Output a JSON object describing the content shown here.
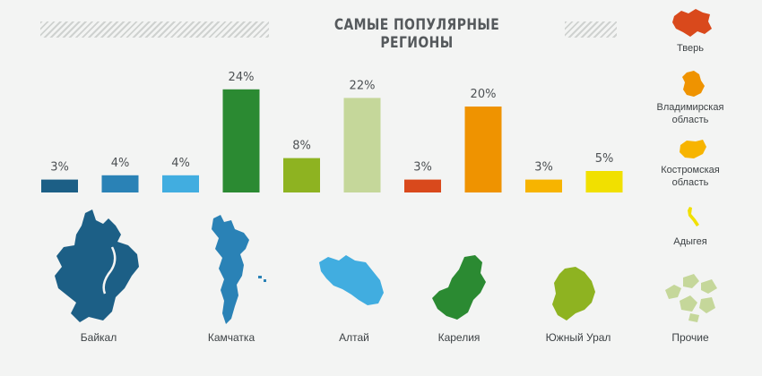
{
  "chart_data": {
    "type": "bar",
    "title": "САМЫЕ ПОПУЛЯРНЫЕ РЕГИОНЫ",
    "categories": [
      "Байкал",
      "Камчатка",
      "Алтай",
      "Карелия",
      "Южный Урал",
      "Прочие",
      "Тверь",
      "Владимирская область",
      "Костромская область",
      "Адыгея"
    ],
    "values": [
      3,
      4,
      4,
      24,
      8,
      22,
      3,
      20,
      3,
      5
    ],
    "value_labels": [
      "3%",
      "4%",
      "4%",
      "24%",
      "8%",
      "22%",
      "3%",
      "20%",
      "3%",
      "5%"
    ],
    "colors": [
      "#1c5f86",
      "#2a82b6",
      "#41ade0",
      "#2b8a32",
      "#8eb321",
      "#c5d79a",
      "#d9491c",
      "#ef9300",
      "#f7b400",
      "#f1e000"
    ],
    "ylim": [
      0,
      25
    ]
  },
  "regions_bottom": [
    {
      "label": "Байкал",
      "icon": "baikal-map-icon",
      "color": "#1c5f86"
    },
    {
      "label": "Камчатка",
      "icon": "kamchatka-map-icon",
      "color": "#2a82b6"
    },
    {
      "label": "Алтай",
      "icon": "altai-map-icon",
      "color": "#41ade0"
    },
    {
      "label": "Карелия",
      "icon": "karelia-map-icon",
      "color": "#2b8a32"
    },
    {
      "label": "Южный Урал",
      "icon": "south-ural-map-icon",
      "color": "#8eb321"
    },
    {
      "label": "Прочие",
      "icon": "other-regions-map-icon",
      "color": "#c5d79a"
    }
  ],
  "regions_side": [
    {
      "label": "Тверь",
      "icon": "tver-map-icon",
      "color": "#d9491c"
    },
    {
      "label": "Владимирская область",
      "icon": "vladimir-map-icon",
      "color": "#ef9300"
    },
    {
      "label": "Костромская область",
      "icon": "kostroma-map-icon",
      "color": "#f7b400"
    },
    {
      "label": "Адыгея",
      "icon": "adygea-map-icon",
      "color": "#f1e000"
    }
  ]
}
